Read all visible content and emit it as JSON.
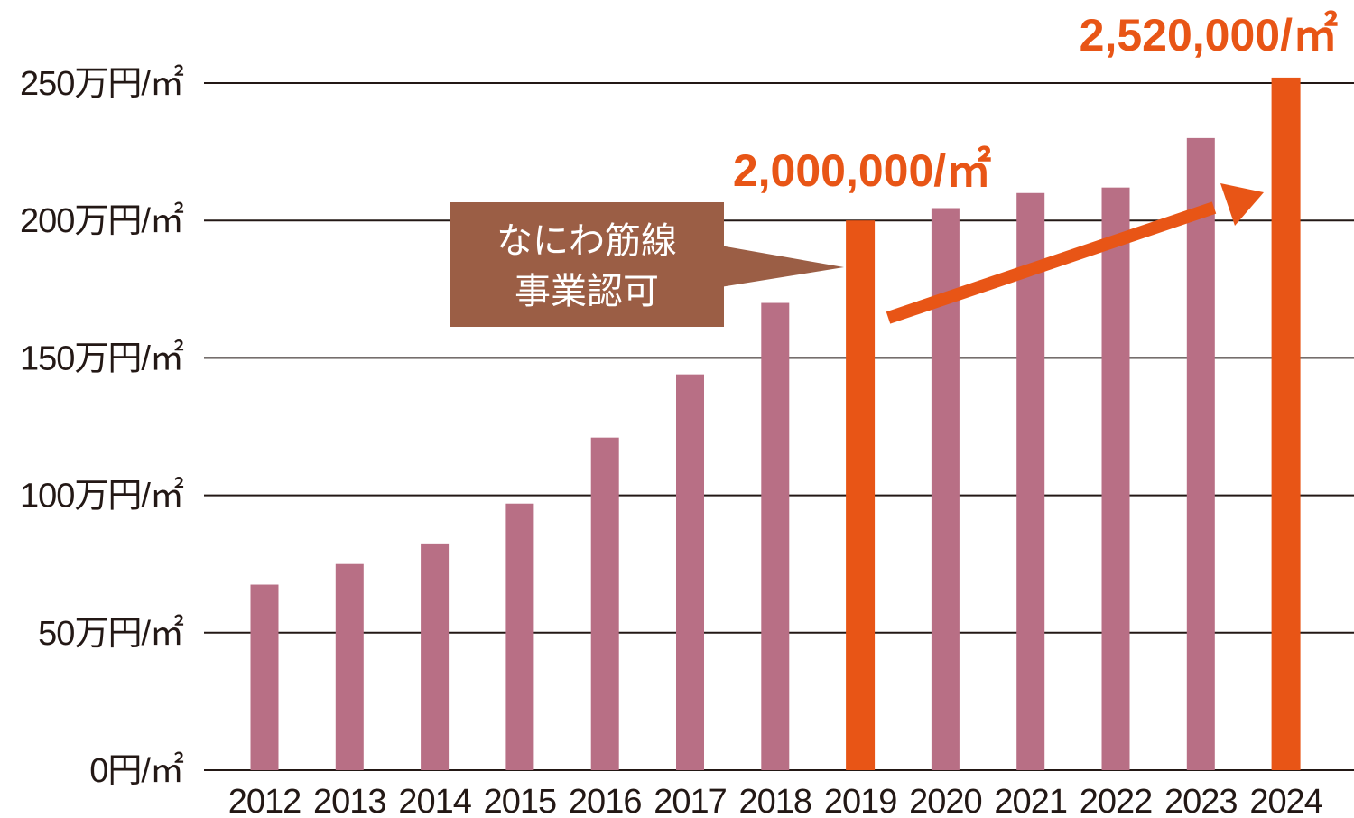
{
  "chart_data": {
    "type": "bar",
    "categories": [
      "2012",
      "2013",
      "2014",
      "2015",
      "2016",
      "2017",
      "2018",
      "2019",
      "2020",
      "2021",
      "2022",
      "2023",
      "2024"
    ],
    "values": [
      67.5,
      75,
      82.5,
      97,
      121,
      144,
      170,
      200,
      204.5,
      210,
      212,
      230,
      252
    ],
    "ylim": [
      0,
      250
    ],
    "yticks": [
      0,
      50,
      100,
      150,
      200,
      250
    ],
    "ytick_labels": [
      "0円/㎡",
      "50万円/㎡",
      "100万円/㎡",
      "150万円/㎡",
      "200万円/㎡",
      "250万円/㎡"
    ],
    "grid": true,
    "colors": {
      "normal": "#b86f85",
      "highlight": "#e85516",
      "callout": "#9b5e45"
    },
    "highlights": [
      "2019",
      "2024"
    ],
    "annotations": {
      "label_2019": "2,000,000/㎡",
      "label_2024": "2,520,000/㎡",
      "callout_line1": "なにわ筋線",
      "callout_line2": "事業認可"
    }
  }
}
